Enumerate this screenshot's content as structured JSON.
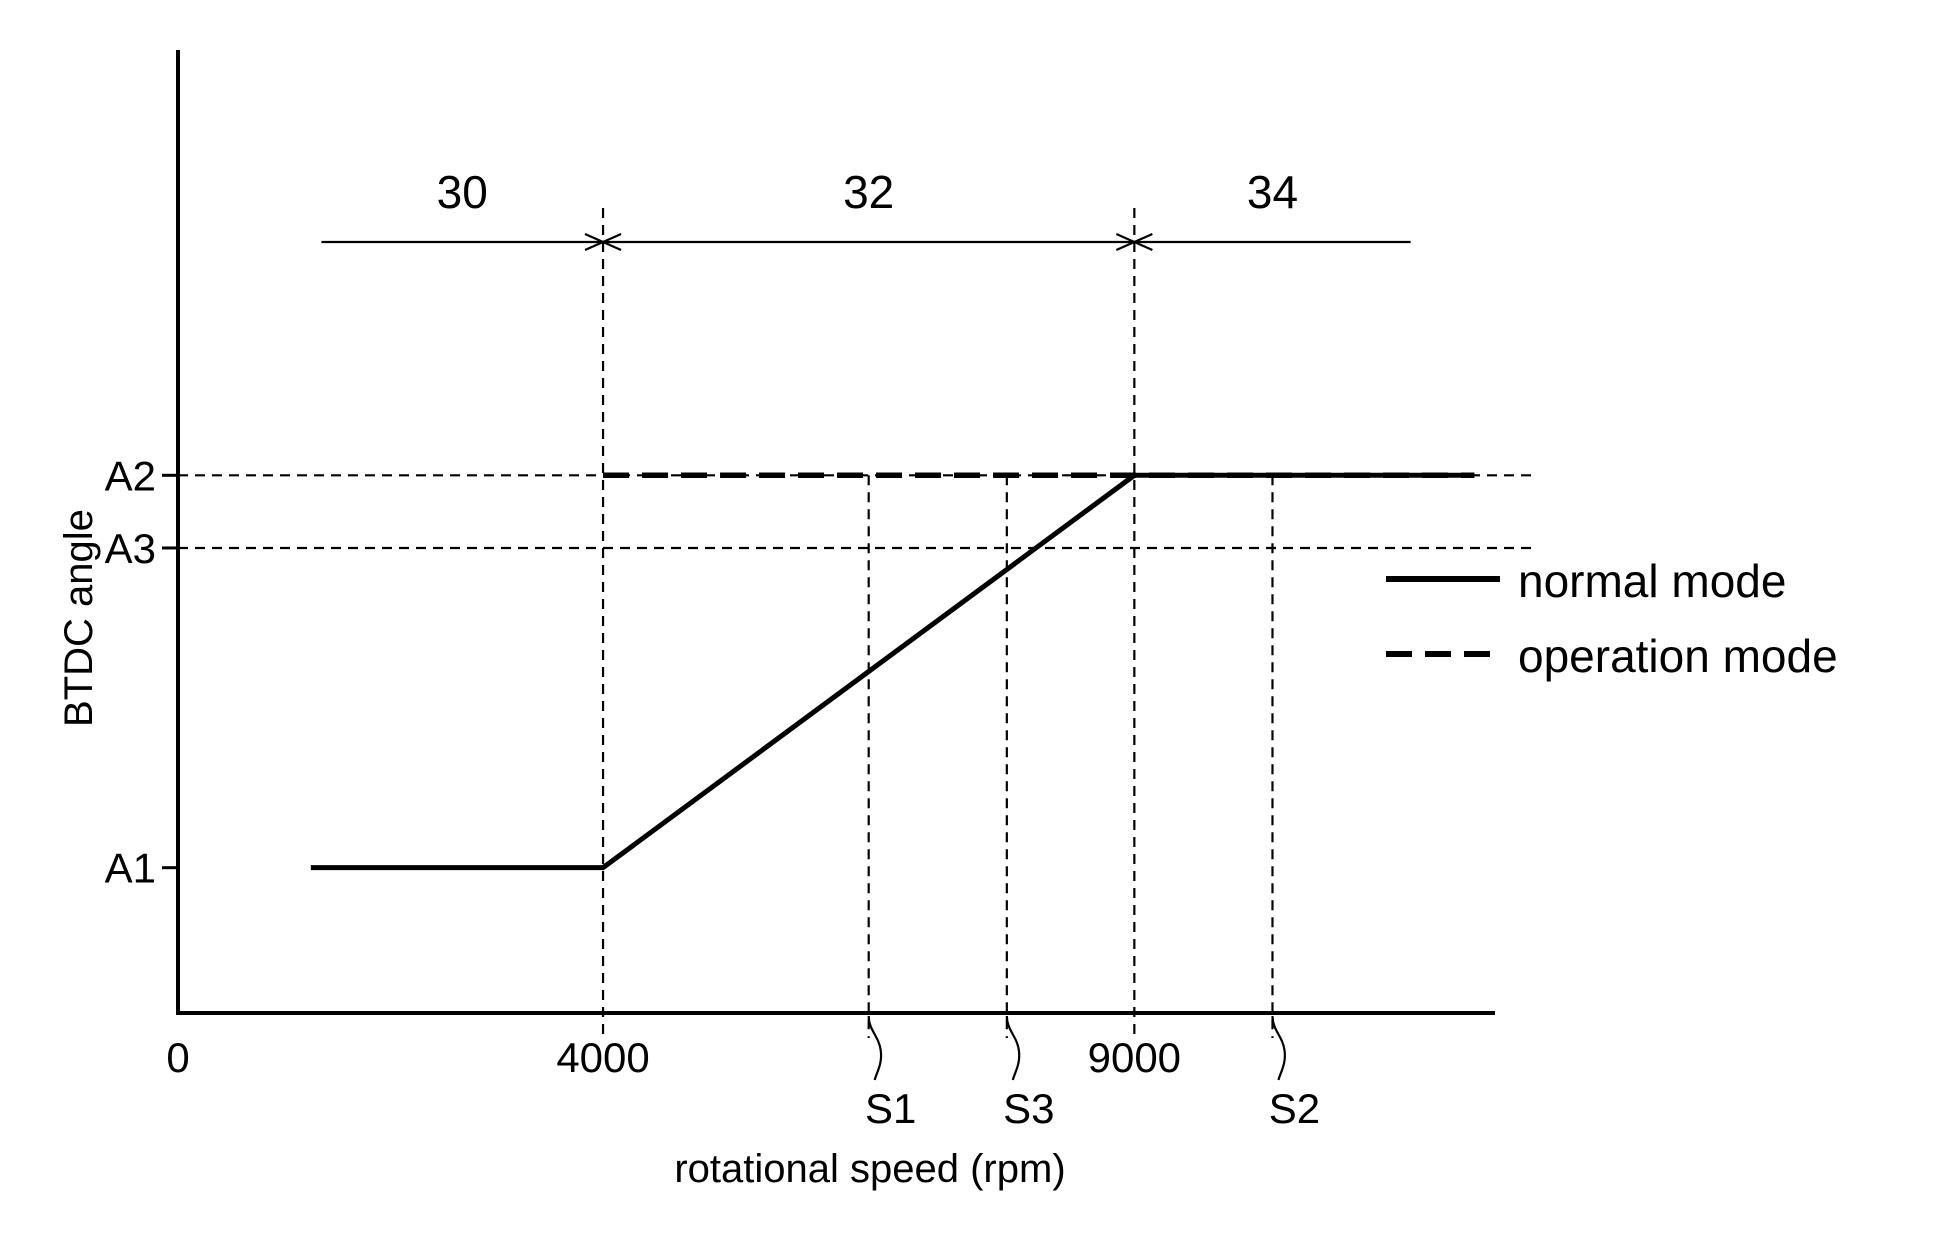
{
  "chart_data": {
    "type": "line",
    "title": "",
    "xlabel": "rotational speed (rpm)",
    "ylabel": "BTDC angle",
    "x_ticks": [
      {
        "value": 0,
        "label": "0"
      },
      {
        "value": 4000,
        "label": "4000"
      },
      {
        "value": 9000,
        "label": "9000"
      }
    ],
    "y_ticks": [
      {
        "value": 1,
        "label": "A1"
      },
      {
        "value": 3.2,
        "label": "A3"
      },
      {
        "value": 3.7,
        "label": "A2"
      }
    ],
    "xlim": [
      0,
      12300
    ],
    "ylim": [
      0,
      6.2
    ],
    "speed_markers": [
      {
        "value": 6500,
        "label": "S1"
      },
      {
        "value": 7800,
        "label": "S3"
      },
      {
        "value": 10300,
        "label": "S2"
      }
    ],
    "regions": [
      {
        "label": "30",
        "from": 1350,
        "to": 4000
      },
      {
        "label": "32",
        "from": 4000,
        "to": 9000
      },
      {
        "label": "34",
        "from": 9000,
        "to": 11600
      }
    ],
    "series": [
      {
        "name": "normal mode",
        "style": "solid",
        "x": [
          1250,
          4000,
          9000,
          12200
        ],
        "y": [
          1,
          1,
          3.7,
          3.7
        ]
      },
      {
        "name": "operation mode",
        "style": "dashed",
        "x": [
          4000,
          12200
        ],
        "y": [
          3.7,
          3.7
        ]
      }
    ],
    "reference_lines": {
      "horizontal": [
        3.7,
        3.2
      ],
      "vertical": [
        4000,
        6500,
        7800,
        9000,
        10300
      ]
    },
    "legend_position": "right",
    "grid": false
  }
}
